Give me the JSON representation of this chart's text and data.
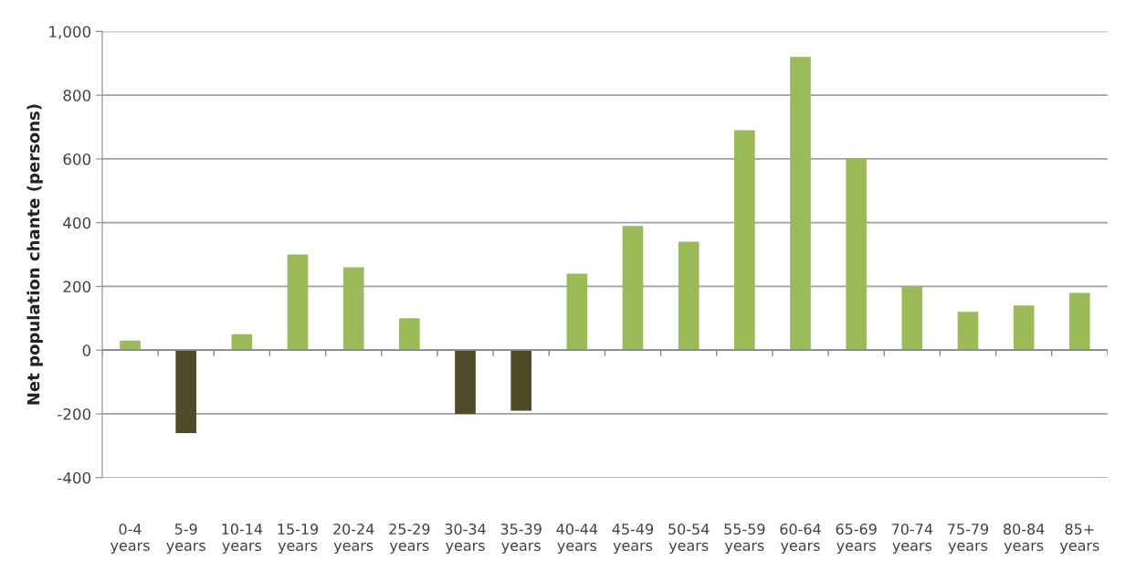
{
  "chart_data": {
    "type": "bar",
    "ylabel": "Net population chante (persons)",
    "categories": [
      "0-4\nyears",
      "5-9\nyears",
      "10-14\nyears",
      "15-19\nyears",
      "20-24\nyears",
      "25-29\nyears",
      "30-34\nyears",
      "35-39\nyears",
      "40-44\nyears",
      "45-49\nyears",
      "50-54\nyears",
      "55-59\nyears",
      "60-64\nyears",
      "65-69\nyears",
      "70-74\nyears",
      "75-79\nyears",
      "80-84\nyears",
      "85+\nyears"
    ],
    "values": [
      30,
      -260,
      50,
      300,
      260,
      100,
      -200,
      -190,
      240,
      390,
      340,
      690,
      920,
      600,
      200,
      120,
      140,
      180
    ],
    "colors": [
      "#9bbb59",
      "#4f4a28",
      "#9bbb59",
      "#9bbb59",
      "#9bbb59",
      "#9bbb59",
      "#4f4a28",
      "#4f4a28",
      "#9bbb59",
      "#9bbb59",
      "#9bbb59",
      "#9bbb59",
      "#9bbb59",
      "#9bbb59",
      "#9bbb59",
      "#9bbb59",
      "#9bbb59",
      "#9bbb59"
    ],
    "ylim": [
      -400,
      1000
    ],
    "yticks": [
      {
        "value": -400,
        "label": "-400"
      },
      {
        "value": -200,
        "label": "-200"
      },
      0,
      200,
      400,
      600,
      800,
      {
        "value": 1000,
        "label": "1,000"
      }
    ],
    "grid": "y"
  }
}
